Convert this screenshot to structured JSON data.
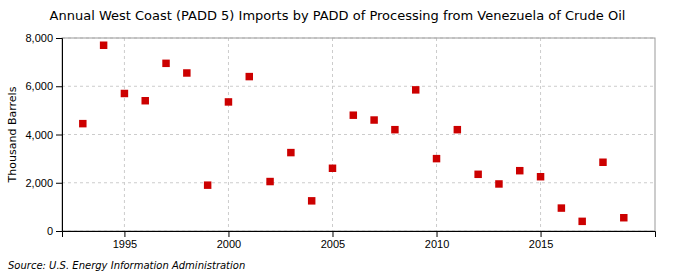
{
  "chart_data": {
    "type": "scatter",
    "title": "Annual West Coast (PADD 5) Imports by PADD of Processing from Venezuela of Crude Oil",
    "ylabel": "Thousand Barrels",
    "source": "Source: U.S. Energy Information Administration",
    "x": [
      1993,
      1994,
      1995,
      1996,
      1997,
      1998,
      1999,
      2000,
      2001,
      2002,
      2003,
      2004,
      2005,
      2006,
      2007,
      2008,
      2009,
      2010,
      2011,
      2012,
      2013,
      2014,
      2015,
      2016,
      2017,
      2018,
      2019
    ],
    "values": [
      4450,
      7700,
      5700,
      5400,
      6950,
      6550,
      1900,
      5350,
      6400,
      2050,
      3250,
      1250,
      2600,
      4800,
      4600,
      4200,
      5850,
      3000,
      4200,
      2350,
      1950,
      2500,
      2250,
      950,
      400,
      2850,
      550
    ],
    "color": "#cc0000",
    "marker": "square",
    "xlim": [
      1992.0,
      2020.5
    ],
    "xticks": [
      1995,
      2000,
      2005,
      2010,
      2015
    ],
    "ylim": [
      0,
      8000
    ],
    "yticks": [
      0,
      {
        "value": 2000,
        "label": "2,000"
      },
      {
        "value": 4000,
        "label": "4,000"
      },
      {
        "value": 6000,
        "label": "6,000"
      },
      {
        "value": 8000,
        "label": "8,000"
      }
    ],
    "grid": true
  }
}
